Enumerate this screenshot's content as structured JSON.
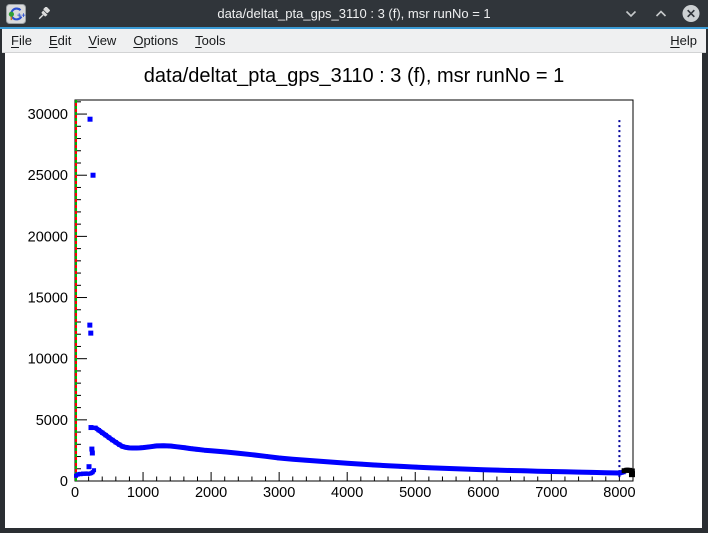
{
  "window": {
    "title": "data/deltat_pta_gps_3110 : 3 (f), msr runNo = 1"
  },
  "titlebar": {
    "app_icon": "root-logo-icon",
    "pin_icon": "pin-icon",
    "buttons": [
      {
        "name": "minimize",
        "icon": "chevron-down-icon"
      },
      {
        "name": "maximize",
        "icon": "chevron-up-icon"
      },
      {
        "name": "close",
        "icon": "close-icon"
      }
    ]
  },
  "menubar": {
    "items": [
      "File",
      "Edit",
      "View",
      "Options",
      "Tools"
    ],
    "right_item": "Help"
  },
  "chart_data": {
    "type": "scatter",
    "title": "data/deltat_pta_gps_3110 : 3 (f), msr runNo = 1",
    "xlabel": "",
    "ylabel": "",
    "xlim": [
      0,
      8200
    ],
    "ylim": [
      0,
      31150
    ],
    "x_ticks": [
      0,
      1000,
      2000,
      3000,
      4000,
      5000,
      6000,
      7000,
      8000
    ],
    "y_ticks": [
      0,
      5000,
      10000,
      15000,
      20000,
      25000,
      30000
    ],
    "x_minor_step": 200,
    "y_minor_step": 1000,
    "grid": false,
    "legend": "none",
    "marker": "square",
    "series": [
      {
        "name": "histogram data (in range)",
        "color": "#0000ff",
        "segments": {
          "pre_t0_background": [
            [
              15,
              430
            ],
            [
              40,
              520
            ],
            [
              65,
              580
            ],
            [
              90,
              560
            ],
            [
              115,
              610
            ],
            [
              140,
              580
            ],
            [
              165,
              620
            ],
            [
              190,
              590
            ],
            [
              215,
              600
            ],
            [
              240,
              640
            ],
            [
              260,
              720
            ],
            [
              280,
              880
            ]
          ],
          "t0_prompt_peak": [
            [
              206,
              1170
            ],
            [
              218,
              12745
            ],
            [
              221,
              29580
            ],
            [
              232,
              12090
            ],
            [
              235,
              4370
            ],
            [
              248,
              2610
            ],
            [
              255,
              2290
            ],
            [
              265,
              25000
            ]
          ],
          "decay_band": [
            [
              300,
              4350
            ],
            [
              350,
              4150
            ],
            [
              400,
              3950
            ],
            [
              450,
              3750
            ],
            [
              500,
              3550
            ],
            [
              550,
              3350
            ],
            [
              600,
              3160
            ],
            [
              650,
              2980
            ],
            [
              700,
              2820
            ],
            [
              750,
              2750
            ],
            [
              800,
              2710
            ],
            [
              850,
              2700
            ],
            [
              900,
              2700
            ],
            [
              950,
              2710
            ],
            [
              1000,
              2730
            ],
            [
              1100,
              2800
            ],
            [
              1200,
              2870
            ],
            [
              1300,
              2890
            ],
            [
              1400,
              2860
            ],
            [
              1500,
              2800
            ],
            [
              1600,
              2730
            ],
            [
              1700,
              2650
            ],
            [
              1800,
              2580
            ],
            [
              1900,
              2520
            ],
            [
              2000,
              2470
            ],
            [
              2200,
              2380
            ],
            [
              2400,
              2270
            ],
            [
              2600,
              2150
            ],
            [
              2800,
              2020
            ],
            [
              3000,
              1880
            ],
            [
              3200,
              1780
            ],
            [
              3400,
              1690
            ],
            [
              3600,
              1610
            ],
            [
              3800,
              1530
            ],
            [
              4000,
              1450
            ],
            [
              4200,
              1380
            ],
            [
              4400,
              1310
            ],
            [
              4600,
              1250
            ],
            [
              4800,
              1190
            ],
            [
              5000,
              1140
            ],
            [
              5200,
              1090
            ],
            [
              5400,
              1040
            ],
            [
              5600,
              1000
            ],
            [
              5800,
              960
            ],
            [
              6000,
              925
            ],
            [
              6200,
              890
            ],
            [
              6400,
              860
            ],
            [
              6600,
              830
            ],
            [
              6800,
              800
            ],
            [
              7000,
              775
            ],
            [
              7200,
              750
            ],
            [
              7400,
              725
            ],
            [
              7600,
              700
            ],
            [
              7800,
              675
            ],
            [
              8000,
              650
            ],
            [
              8060,
              730
            ]
          ]
        }
      },
      {
        "name": "histogram data (beyond fit range)",
        "color": "#000000",
        "points": [
          [
            8070,
            840
          ],
          [
            8110,
            880
          ],
          [
            8150,
            870
          ],
          [
            8190,
            820
          ]
        ],
        "end_marker": [
          8185,
          560
        ]
      }
    ],
    "reference_lines": [
      {
        "name": "fit-range-end",
        "x": 8000,
        "color": "#00009a",
        "style": "dotted",
        "y_range": [
          250,
          29500
        ]
      },
      {
        "name": "t0-background-marker",
        "x": 15,
        "colors": [
          "#00b400",
          "#ff0000"
        ],
        "style": "alternating-dashed",
        "y_range": [
          0,
          31150
        ]
      }
    ]
  }
}
